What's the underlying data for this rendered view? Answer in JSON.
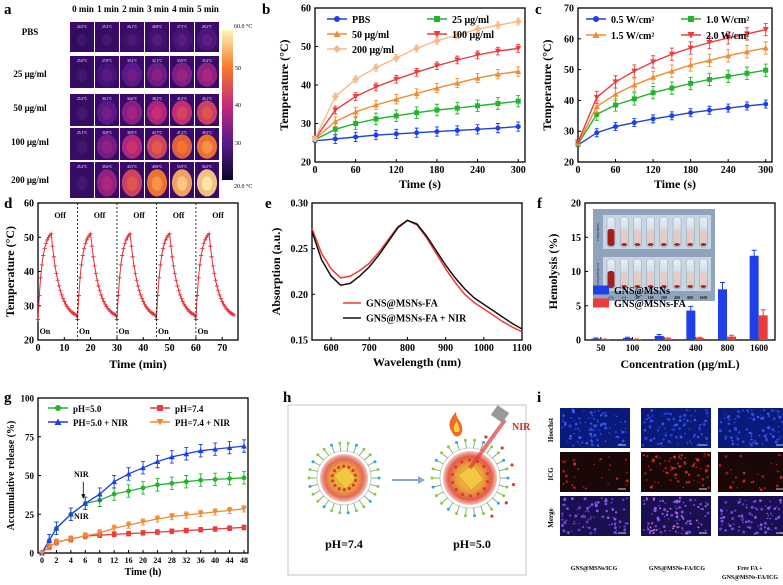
{
  "panel_letters": [
    "a",
    "b",
    "c",
    "d",
    "e",
    "f",
    "g",
    "h",
    "i"
  ],
  "colors": {
    "blue": "#1f3fe8",
    "green": "#22b42b",
    "orange": "#f28a2e",
    "red": "#ee3b3b",
    "peach": "#f6b98a",
    "black": "#111111",
    "darkred": "#e0323a",
    "dark": "#1a1a1a"
  },
  "chart_data": [
    {
      "panel": "a",
      "type": "heatmap",
      "title": "",
      "columns": [
        "0 min",
        "1 min",
        "2 min",
        "3 min",
        "4 min",
        "5 min"
      ],
      "rows": [
        "PBS",
        "25 μg/ml",
        "50 μg/ml",
        "100 μg/ml",
        "200 μg/ml"
      ],
      "values": [
        [
          24.5,
          25.3,
          26.1,
          26.8,
          27.5,
          28.2
        ],
        [
          25.0,
          27.8,
          30.2,
          32.1,
          33.9,
          35.4
        ],
        [
          25.3,
          30.1,
          34.6,
          38.2,
          41.0,
          43.1
        ],
        [
          25.1,
          32.8,
          38.9,
          43.7,
          47.2,
          49.5
        ],
        [
          25.2,
          35.6,
          43.5,
          49.8,
          53.9,
          56.5
        ]
      ],
      "colorbar": {
        "max_label": "60.0 °C",
        "min_label": "20.0 °C",
        "ticks": [
          "50",
          "40",
          "30"
        ],
        "range": [
          20,
          60
        ]
      }
    },
    {
      "panel": "b",
      "type": "line",
      "xlabel": "Time (s)",
      "ylabel": "Temperature (°C)",
      "xlim": [
        0,
        310
      ],
      "ylim": [
        20,
        60
      ],
      "xticks": [
        "0",
        "60",
        "120",
        "180",
        "240",
        "300"
      ],
      "yticks": [
        "20",
        "30",
        "40",
        "50",
        "60"
      ],
      "legend": [
        "PBS",
        "25 μg/ml",
        "50 μg/ml",
        "100 μg/ml",
        "200 μg/ml"
      ],
      "x": [
        0,
        30,
        60,
        90,
        120,
        150,
        180,
        210,
        240,
        270,
        300
      ],
      "series": [
        {
          "name": "PBS",
          "color": "blue",
          "marker": "circle",
          "values": [
            25.5,
            26.0,
            26.5,
            27.0,
            27.3,
            27.6,
            27.9,
            28.2,
            28.5,
            28.8,
            29.2
          ],
          "err": 1.2
        },
        {
          "name": "25 μg/ml",
          "color": "green",
          "marker": "square",
          "values": [
            25.8,
            28.5,
            30.0,
            31.2,
            32.0,
            32.8,
            33.5,
            34.0,
            34.6,
            35.2,
            35.8
          ],
          "err": 1.5
        },
        {
          "name": "50 μg/ml",
          "color": "orange",
          "marker": "triangle",
          "values": [
            26.0,
            30.5,
            33.0,
            34.8,
            36.3,
            37.8,
            39.2,
            40.5,
            41.8,
            42.8,
            43.5
          ],
          "err": 1.2
        },
        {
          "name": "100 μg/ml",
          "color": "red",
          "marker": "triangle-down",
          "values": [
            26.0,
            33.5,
            37.0,
            39.5,
            41.5,
            43.3,
            45.0,
            46.5,
            47.8,
            48.8,
            49.5
          ],
          "err": 1.0
        },
        {
          "name": "200 μg/ml",
          "color": "peach",
          "marker": "diamond",
          "values": [
            26.0,
            37.0,
            41.5,
            44.5,
            47.0,
            49.5,
            51.5,
            53.0,
            54.5,
            55.5,
            56.5
          ],
          "err": 0.9
        }
      ]
    },
    {
      "panel": "c",
      "type": "line",
      "xlabel": "Time (s)",
      "ylabel": "Temperature (°C)",
      "xlim": [
        0,
        310
      ],
      "ylim": [
        20,
        70
      ],
      "xticks": [
        "0",
        "60",
        "120",
        "180",
        "240",
        "300"
      ],
      "yticks": [
        "20",
        "30",
        "40",
        "50",
        "60",
        "70"
      ],
      "legend": [
        "0.5 W/cm²",
        "1.0 W/cm²",
        "1.5 W/cm²",
        "2.0 W/cm²"
      ],
      "x": [
        0,
        30,
        60,
        90,
        120,
        150,
        180,
        210,
        240,
        270,
        300
      ],
      "series": [
        {
          "name": "0.5 W/cm²",
          "color": "blue",
          "marker": "circle",
          "values": [
            25.5,
            29.5,
            31.5,
            32.8,
            34.0,
            35.0,
            36.0,
            36.8,
            37.5,
            38.2,
            38.8
          ],
          "err": 1.3
        },
        {
          "name": "1.0 W/cm²",
          "color": "green",
          "marker": "square",
          "values": [
            25.8,
            35.5,
            38.5,
            40.5,
            42.5,
            44.0,
            45.5,
            46.8,
            47.8,
            48.8,
            49.8
          ],
          "err": 2.0
        },
        {
          "name": "1.5 W/cm²",
          "color": "orange",
          "marker": "triangle",
          "values": [
            26.0,
            38.0,
            42.0,
            45.0,
            47.5,
            49.5,
            51.5,
            53.0,
            54.5,
            55.8,
            57.0
          ],
          "err": 2.0
        },
        {
          "name": "2.0 W/cm²",
          "color": "red",
          "marker": "triangle-down",
          "values": [
            26.5,
            41.0,
            46.0,
            49.5,
            52.5,
            55.0,
            57.0,
            58.8,
            60.3,
            61.6,
            63.0
          ],
          "err": 2.0
        }
      ]
    },
    {
      "panel": "d",
      "type": "line",
      "xlabel": "Time (min)",
      "ylabel": "Temperature (°C)",
      "xlim": [
        0,
        76
      ],
      "ylim": [
        20,
        60
      ],
      "xticks": [
        "0",
        "10",
        "20",
        "30",
        "40",
        "50",
        "60",
        "70"
      ],
      "yticks": [
        "20",
        "30",
        "40",
        "50",
        "60"
      ],
      "cycle_period": 15,
      "on_minutes": 5,
      "base_temperature": 26,
      "peak_temperature": 51,
      "annotations": [
        "Off",
        "On",
        "Off",
        "On",
        "Off",
        "On",
        "Off",
        "On",
        "Off",
        "On"
      ],
      "series": [
        {
          "name": "cycles",
          "color": "darkred",
          "marker": "cross"
        }
      ]
    },
    {
      "panel": "e",
      "type": "line",
      "xlabel": "Wavelength (nm)",
      "ylabel": "Absorption (a.u.)",
      "xlim": [
        550,
        1100
      ],
      "ylim": [
        0.15,
        0.3
      ],
      "xticks": [
        "600",
        "700",
        "800",
        "900",
        "1000",
        "1100"
      ],
      "yticks": [
        "0.15",
        "0.20",
        "0.25",
        "0.30"
      ],
      "legend": [
        "GNS@MSNs-FA",
        "GNS@MSNs-FA + NIR"
      ],
      "x": [
        550,
        575,
        600,
        625,
        650,
        675,
        700,
        725,
        750,
        775,
        800,
        825,
        850,
        875,
        900,
        925,
        950,
        975,
        1000,
        1025,
        1050,
        1075,
        1100
      ],
      "series": [
        {
          "name": "GNS@MSNs-FA",
          "color": "red",
          "values": [
            0.272,
            0.245,
            0.228,
            0.218,
            0.22,
            0.226,
            0.234,
            0.246,
            0.26,
            0.274,
            0.281,
            0.276,
            0.262,
            0.245,
            0.228,
            0.213,
            0.2,
            0.191,
            0.184,
            0.177,
            0.17,
            0.164,
            0.159
          ]
        },
        {
          "name": "GNS@MSNs-FA + NIR",
          "color": "black",
          "values": [
            0.269,
            0.238,
            0.22,
            0.21,
            0.212,
            0.22,
            0.23,
            0.243,
            0.258,
            0.273,
            0.281,
            0.277,
            0.264,
            0.248,
            0.232,
            0.218,
            0.206,
            0.196,
            0.189,
            0.182,
            0.175,
            0.168,
            0.162
          ]
        }
      ]
    },
    {
      "panel": "f",
      "type": "bar",
      "xlabel": "Concentration (μg/mL)",
      "ylabel": "Hemolysis (%)",
      "ylim": [
        0,
        20
      ],
      "yticks": [
        "0",
        "5",
        "10",
        "15",
        "20"
      ],
      "categories": [
        "50",
        "100",
        "200",
        "400",
        "800",
        "1600"
      ],
      "legend": [
        "GNS@MSNs",
        "GNS@MSNs-FA"
      ],
      "series": [
        {
          "name": "GNS@MSNs",
          "color": "blue",
          "values": [
            0.2,
            0.3,
            0.6,
            4.3,
            7.4,
            12.3
          ],
          "err": [
            0.1,
            0.1,
            0.2,
            0.6,
            1.0,
            0.8
          ]
        },
        {
          "name": "GNS@MSNs-FA",
          "color": "red",
          "values": [
            0.1,
            0.1,
            0.2,
            0.3,
            0.5,
            3.6
          ],
          "err": [
            0.05,
            0.05,
            0.1,
            0.1,
            0.2,
            0.8
          ]
        }
      ],
      "inset_rows": [
        "GNS@MSNs",
        "GNS@MSNs-FA"
      ],
      "inset_labels": [
        "(+)",
        "(-)",
        "50",
        "100",
        "200",
        "400",
        "800",
        "1600"
      ]
    },
    {
      "panel": "g",
      "type": "line",
      "xlabel": "Time (h)",
      "ylabel": "Accumulative release (%)",
      "xlim": [
        0,
        48
      ],
      "ylim": [
        0,
        100
      ],
      "xticks": [
        "0",
        "2",
        "4",
        "6",
        "8",
        "12",
        "16",
        "20",
        "24",
        "28",
        "32",
        "36",
        "40",
        "44",
        "48"
      ],
      "yticks": [
        "0",
        "25",
        "50",
        "75",
        "100"
      ],
      "legend": [
        "pH=5.0",
        "pH=7.4",
        "PH=5.0 + NIR",
        "PH=7.4 + NIR"
      ],
      "annotations": [
        "NIR",
        "NIR"
      ],
      "x": [
        0,
        1,
        2,
        4,
        6,
        8,
        12,
        16,
        20,
        24,
        28,
        32,
        36,
        40,
        44,
        48
      ],
      "series": [
        {
          "name": "pH=5.0",
          "color": "green",
          "marker": "circle",
          "values": [
            0,
            8,
            16,
            25,
            32,
            34,
            38,
            40,
            42,
            44,
            45,
            46,
            47,
            47.5,
            48,
            48.5
          ],
          "err": 4
        },
        {
          "name": "pH=7.4",
          "color": "red",
          "marker": "square",
          "values": [
            0,
            4,
            7,
            9,
            11,
            11.5,
            12,
            12.5,
            13,
            13.5,
            14,
            14.5,
            15,
            15.5,
            16,
            16.5
          ],
          "err": 1.5
        },
        {
          "name": "PH=5.0 + NIR",
          "color": "blue",
          "marker": "triangle",
          "values": [
            0,
            8,
            16,
            25,
            32,
            38,
            46,
            51,
            55,
            59,
            62,
            64,
            66,
            67,
            68,
            69
          ],
          "err": 4
        },
        {
          "name": "PH=7.4 + NIR",
          "color": "orange",
          "marker": "triangle-down",
          "values": [
            0,
            4,
            7,
            9,
            11,
            13,
            16,
            18,
            20,
            22,
            23.5,
            24.5,
            25.5,
            26.5,
            27.5,
            28.5
          ],
          "err": 2
        }
      ]
    },
    {
      "panel": "i",
      "type": "table",
      "rows": [
        "Hoechst",
        "ICG",
        "Merge"
      ],
      "columns": [
        "GNS@MSNs/ICG",
        "GNS@MSNs-FA/ICG",
        "Free FA + GNS@MSNs-FA/ICG"
      ]
    }
  ],
  "schematic_h": {
    "left_label": "pH=7.4",
    "right_label": "pH=5.0",
    "laser_label": "NIR"
  },
  "panel_i_col3_line1": "Free FA +",
  "panel_i_col3_line2": "GNS@MSNs-FA/ICG"
}
